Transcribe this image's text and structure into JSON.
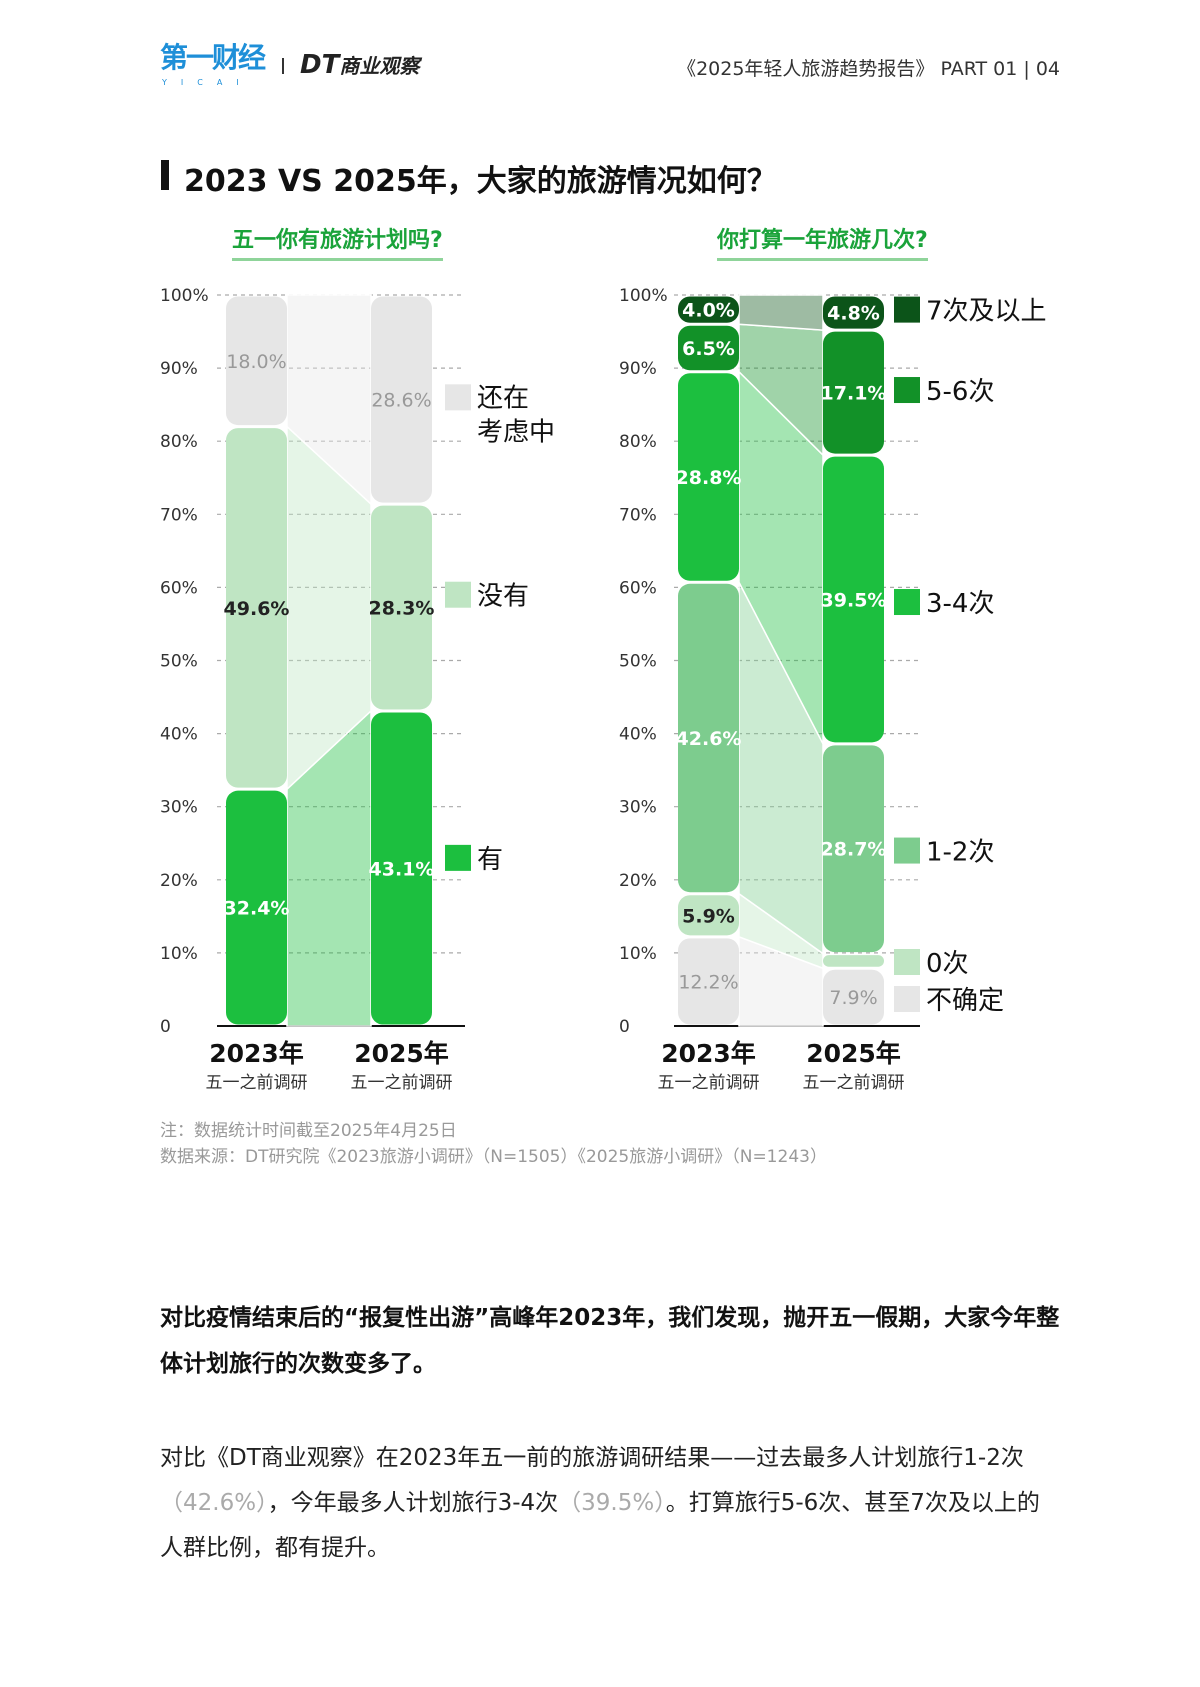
{
  "header": {
    "logo1": "第一财经",
    "logo1_sub": "YICAI",
    "logo2_dt": "DT",
    "logo2_text": "商业观察",
    "report": "《2025年轻人旅游趋势报告》  PART 01  |  04"
  },
  "title": "2023 VS 2025年，大家的旅游情况如何？",
  "colors": {
    "accent": "#1aa33a"
  },
  "chart_data": [
    {
      "type": "stacked-bar",
      "title": "五一你有旅游计划吗?",
      "ylim": [
        0,
        100
      ],
      "yticks": [
        "0",
        "10%",
        "20%",
        "30%",
        "40%",
        "50%",
        "60%",
        "70%",
        "80%",
        "90%",
        "100%"
      ],
      "grid": true,
      "legend": "right",
      "categories": [
        {
          "year": "2023年",
          "sub": "五一之前调研"
        },
        {
          "year": "2025年",
          "sub": "五一之前调研"
        }
      ],
      "series": [
        {
          "name": "有",
          "color": "#1cbf3f",
          "values": [
            32.4,
            43.1
          ],
          "labels": [
            "32.4%",
            "43.1%"
          ],
          "text": "#ffffff"
        },
        {
          "name": "没有",
          "color": "#bfe5c3",
          "values": [
            49.6,
            28.3
          ],
          "labels": [
            "49.6%",
            "28.3%"
          ],
          "text": "#222222"
        },
        {
          "name": "还在考虑中",
          "color": "#e6e6e6",
          "values": [
            18.0,
            28.6
          ],
          "labels": [
            "18.0%",
            "28.6%"
          ],
          "text": "#999999"
        }
      ]
    },
    {
      "type": "stacked-bar",
      "title": "你打算一年旅游几次?",
      "ylim": [
        0,
        100
      ],
      "yticks": [
        "0",
        "10%",
        "20%",
        "30%",
        "40%",
        "50%",
        "60%",
        "70%",
        "80%",
        "90%",
        "100%"
      ],
      "grid": true,
      "legend": "right",
      "categories": [
        {
          "year": "2023年",
          "sub": "五一之前调研"
        },
        {
          "year": "2025年",
          "sub": "五一之前调研"
        }
      ],
      "series": [
        {
          "name": "不确定",
          "color": "#e6e6e6",
          "values": [
            12.2,
            7.9
          ],
          "labels": [
            "12.2%",
            "7.9%"
          ],
          "text": "#999999"
        },
        {
          "name": "0次",
          "color": "#bfe5c3",
          "values": [
            5.9,
            2.0
          ],
          "labels": [
            "5.9%",
            ""
          ],
          "text": "#222222"
        },
        {
          "name": "1-2次",
          "color": "#7dcc8e",
          "values": [
            42.6,
            28.7
          ],
          "labels": [
            "42.6%",
            "28.7%"
          ],
          "text": "#ffffff"
        },
        {
          "name": "3-4次",
          "color": "#1cbf3f",
          "values": [
            28.8,
            39.5
          ],
          "labels": [
            "28.8%",
            "39.5%"
          ],
          "text": "#ffffff"
        },
        {
          "name": "5-6次",
          "color": "#129128",
          "values": [
            6.5,
            17.1
          ],
          "labels": [
            "6.5%",
            "17.1%"
          ],
          "text": "#ffffff"
        },
        {
          "name": "7次及以上",
          "color": "#0c5419",
          "values": [
            4.0,
            4.8
          ],
          "labels": [
            "4.0%",
            "4.8%"
          ],
          "text": "#ffffff"
        }
      ]
    }
  ],
  "notes": {
    "line1": "注：数据统计时间截至2025年4月25日",
    "line2": "数据来源：DT研究院《2023旅游小调研》（N=1505）《2025旅游小调研》（N=1243）"
  },
  "body": {
    "p1": "对比疫情结束后的“报复性出游”高峰年2023年，我们发现，抛开五一假期，大家今年整体计划旅行的次数变多了。",
    "p2a": "对比《DT商业观察》在2023年五一前的旅游调研结果——过去最多人计划旅行1-2次",
    "p2b": "（42.6%）",
    "p2c": "，今年最多人计划旅行3-4次",
    "p2d": "（39.5%）",
    "p2e": "。打算旅行5-6次、甚至7次及以上的人群比例，都有提升。"
  }
}
